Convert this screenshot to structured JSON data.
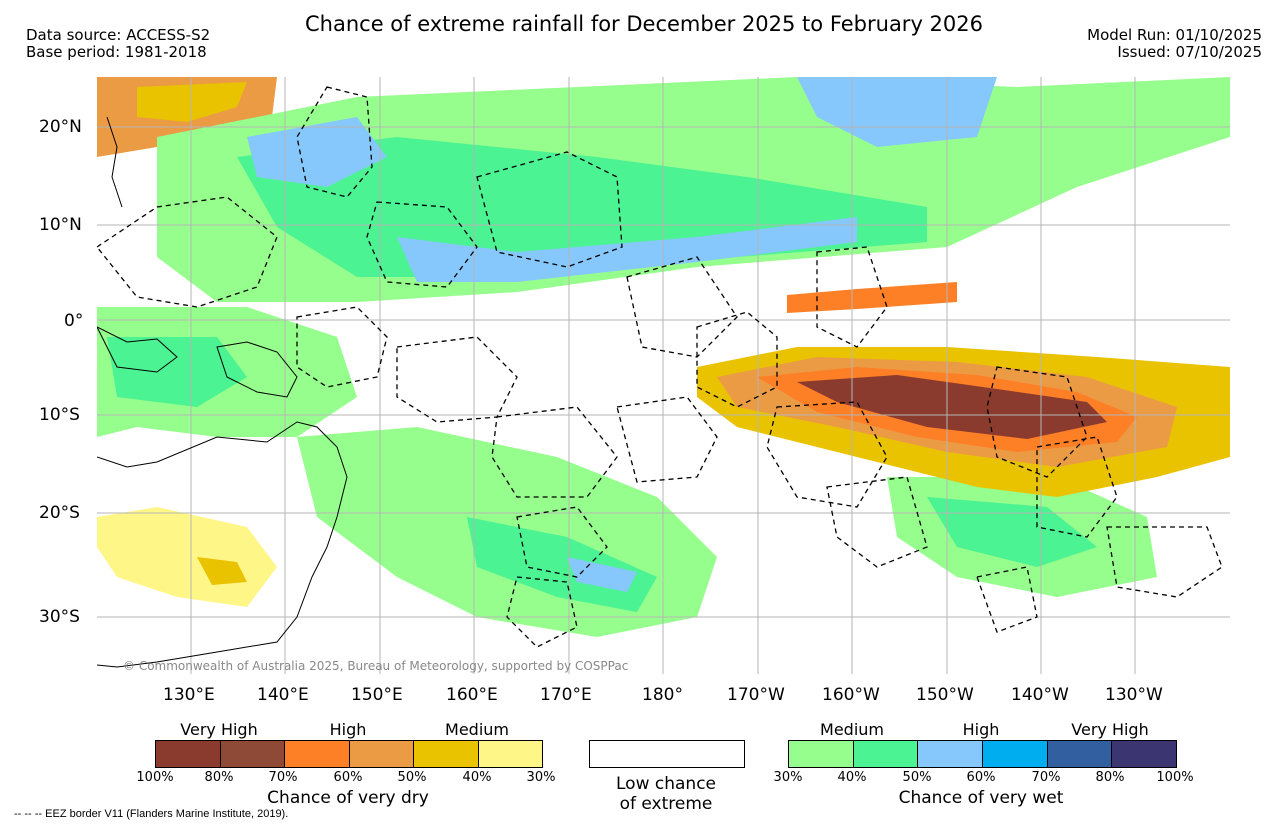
{
  "header": {
    "title": "Chance of extreme rainfall for December 2025 to February 2026",
    "data_source": "Data source: ACCESS-S2",
    "base_period": "Base period: 1981-2018",
    "model_run": "Model Run: 01/10/2025",
    "issued": "Issued: 07/10/2025"
  },
  "map": {
    "lat_labels": [
      "20°N",
      "10°N",
      "0°",
      "10°S",
      "20°S",
      "30°S"
    ],
    "lon_labels": [
      "130°E",
      "140°E",
      "150°E",
      "160°E",
      "170°E",
      "180°",
      "170°W",
      "160°W",
      "150°W",
      "140°W",
      "130°W"
    ],
    "copyright": "© Commonwealth of Australia 2025, Bureau of Meteorology, supported by COSPPac"
  },
  "legend": {
    "dry": {
      "categories": [
        "Very High",
        "High",
        "Medium"
      ],
      "colors": [
        "#8B3A2E",
        "#8E4A36",
        "#FD7F26",
        "#EC9B45",
        "#E9C200",
        "#FFF688"
      ],
      "ticks": [
        "100%",
        "80%",
        "70%",
        "60%",
        "50%",
        "40%",
        "30%"
      ],
      "label": "Chance of very dry"
    },
    "low": {
      "label_line1": "Low chance",
      "label_line2": "of extreme"
    },
    "wet": {
      "categories": [
        "Medium",
        "High",
        "Very High"
      ],
      "colors": [
        "#96FE8C",
        "#4BF393",
        "#86C8FB",
        "#00AEEF",
        "#315F9F",
        "#3B3672"
      ],
      "ticks": [
        "30%",
        "40%",
        "50%",
        "60%",
        "70%",
        "80%",
        "100%"
      ],
      "label": "Chance of very wet"
    },
    "eez_note": "-- -- -- EEZ border V11 (Flanders Marine Institute, 2019)."
  }
}
